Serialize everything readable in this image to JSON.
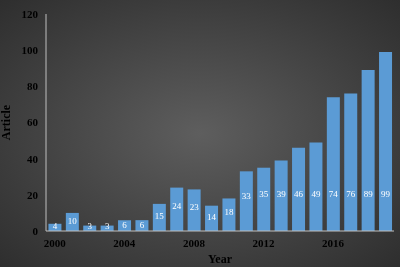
{
  "chart_data": {
    "type": "bar",
    "x_label": "Year",
    "y_label": "Article",
    "categories": [
      "2000",
      null,
      null,
      null,
      "2004",
      null,
      null,
      null,
      "2008",
      null,
      null,
      null,
      "2012",
      null,
      null,
      null,
      "2016",
      null,
      null,
      null
    ],
    "values": [
      4,
      10,
      3,
      3,
      6,
      6,
      15,
      24,
      23,
      14,
      18,
      33,
      35,
      39,
      46,
      49,
      74,
      76,
      89,
      99
    ],
    "color": "#5b9bd5",
    "ylim": [
      0,
      120
    ],
    "yticks": [
      0,
      20,
      40,
      60,
      80,
      100,
      120
    ],
    "grid": false,
    "data_labels": true
  }
}
